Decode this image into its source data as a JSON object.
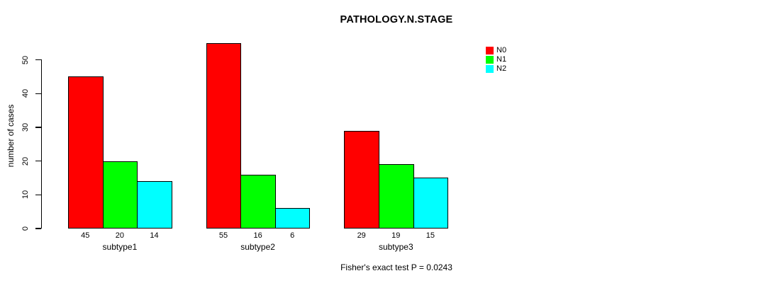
{
  "chart_data": {
    "type": "bar",
    "title": "PATHOLOGY.N.STAGE",
    "xlabel": "",
    "ylabel": "number of cases",
    "categories": [
      "subtype1",
      "subtype2",
      "subtype3"
    ],
    "series": [
      {
        "name": "N0",
        "color": "#FF0000",
        "values": [
          45,
          55,
          29
        ]
      },
      {
        "name": "N1",
        "color": "#00FF00",
        "values": [
          20,
          16,
          19
        ]
      },
      {
        "name": "N2",
        "color": "#00FFFF",
        "values": [
          14,
          6,
          15
        ]
      }
    ],
    "bar_value_labels": [
      [
        45,
        20,
        14
      ],
      [
        55,
        16,
        6
      ],
      [
        29,
        19,
        15
      ]
    ],
    "y_ticks": [
      0,
      10,
      20,
      30,
      40,
      50
    ],
    "ylim": [
      0,
      55
    ],
    "grid": false,
    "legend_position": "top-right",
    "bar_border_color": "#000000",
    "axis_color": "#000000"
  },
  "caption": "Fisher's exact test P = 0.0243",
  "colors": {
    "background": "#FFFFFF",
    "text": "#000000",
    "n0": "#FF0000",
    "n1": "#00FF00",
    "n2": "#00FFFF"
  }
}
